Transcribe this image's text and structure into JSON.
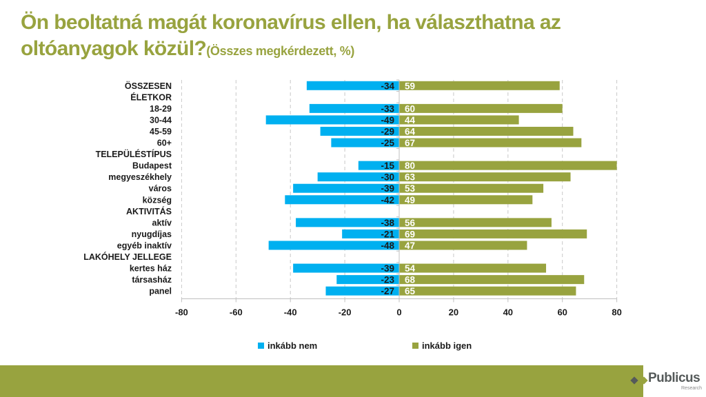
{
  "title": {
    "main": "Ön beoltatná magát koronavírus ellen, ha választhatna az oltóanyagok közül?",
    "sub": "(Összes megkérdezett, %)"
  },
  "colors": {
    "nem": "#00b0f0",
    "igen": "#98a33f",
    "title": "#98a33f",
    "band": "#98a33f"
  },
  "chart_data": {
    "type": "bar",
    "orientation": "horizontal",
    "stacked": "diverging",
    "title": "Ön beoltatná magát koronavírus ellen, ha választhatna az oltóanyagok közül? (Összes megkérdezett, %)",
    "categories": [
      "ÖSSZESEN",
      "ÉLETKOR",
      "18-29",
      "30-44",
      "45-59",
      "60+",
      "TELEPÜLÉSTÍPUS",
      "Budapest",
      "megyeszékhely",
      "város",
      "község",
      "AKTIVITÁS",
      "aktív",
      "nyugdíjas",
      "egyéb inaktív",
      "LAKÓHELY JELLEGE",
      "kertes ház",
      "társasház",
      "panel"
    ],
    "series": [
      {
        "name": "inkább nem",
        "values": [
          -34,
          null,
          -33,
          -49,
          -29,
          -25,
          null,
          -15,
          -30,
          -39,
          -42,
          null,
          -38,
          -21,
          -48,
          null,
          -39,
          -23,
          -27
        ]
      },
      {
        "name": "inkább igen",
        "values": [
          59,
          null,
          60,
          44,
          64,
          67,
          null,
          80,
          63,
          53,
          49,
          null,
          56,
          69,
          47,
          null,
          54,
          68,
          65
        ]
      }
    ],
    "xlim": [
      -80,
      80
    ],
    "xticks": [
      -80,
      -60,
      -40,
      -20,
      0,
      20,
      40,
      60,
      80
    ],
    "xlabel": "",
    "ylabel": "",
    "grid": "vertical dashed",
    "legend": "bottom"
  },
  "legend": [
    {
      "label": "inkább nem",
      "color": "#00b0f0"
    },
    {
      "label": "inkább igen",
      "color": "#98a33f"
    }
  ],
  "logo": {
    "name": "Publicus",
    "tagline": "Research"
  }
}
